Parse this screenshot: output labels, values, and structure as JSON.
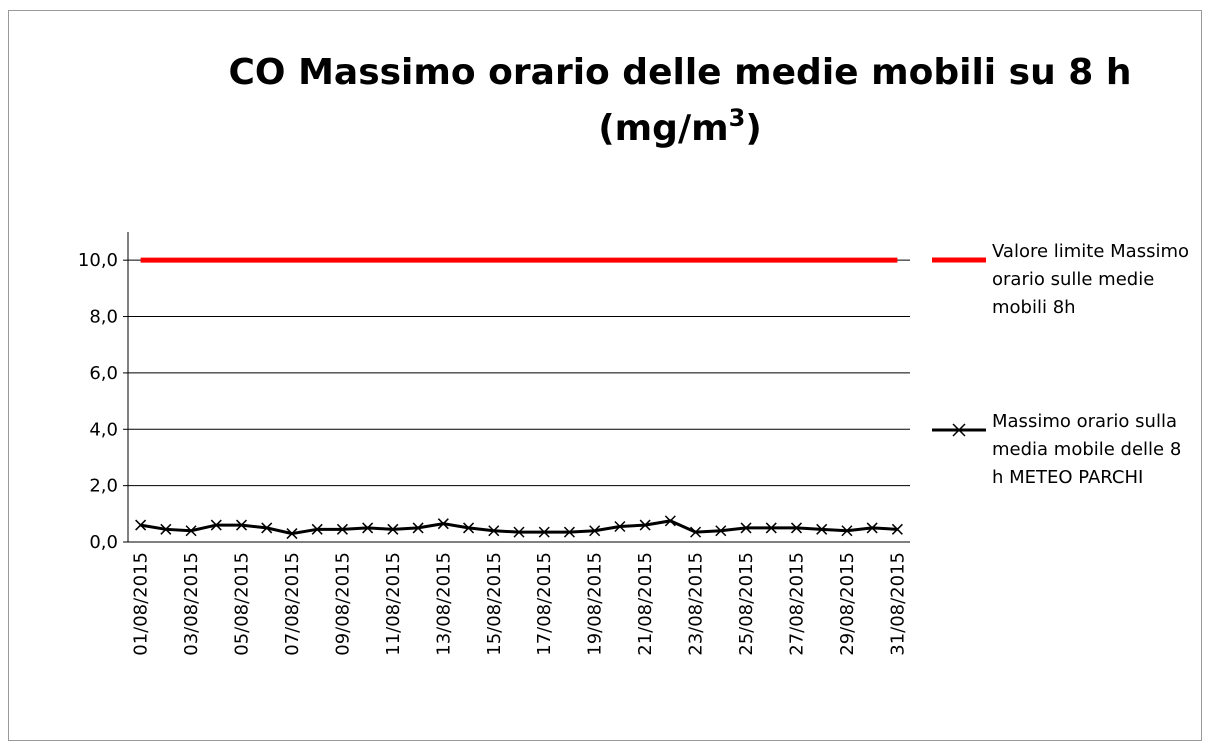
{
  "chart_data": {
    "type": "line",
    "title": "CO Massimo orario delle medie mobili  su 8 h",
    "title_unit": {
      "text": "(mg/m",
      "superscript": "3",
      "close": ")"
    },
    "categories": [
      "01/08/2015",
      null,
      "03/08/2015",
      null,
      "05/08/2015",
      null,
      "07/08/2015",
      null,
      "09/08/2015",
      null,
      "11/08/2015",
      null,
      "13/08/2015",
      null,
      "15/08/2015",
      null,
      "17/08/2015",
      null,
      "19/08/2015",
      null,
      "21/08/2015",
      null,
      "23/08/2015",
      null,
      "25/08/2015",
      null,
      "27/08/2015",
      null,
      "29/08/2015",
      null,
      "31/08/2015"
    ],
    "series": [
      {
        "name": "Valore limite Massimo orario sulle medie mobili 8h",
        "color": "#ff0000",
        "marker": false,
        "values": [
          10,
          10,
          10,
          10,
          10,
          10,
          10,
          10,
          10,
          10,
          10,
          10,
          10,
          10,
          10,
          10,
          10,
          10,
          10,
          10,
          10,
          10,
          10,
          10,
          10,
          10,
          10,
          10,
          10,
          10,
          10
        ]
      },
      {
        "name": "Massimo orario sulla media mobile delle 8 h METEO PARCHI",
        "color": "#000000",
        "marker": true,
        "values": [
          0.6,
          0.45,
          0.4,
          0.6,
          0.6,
          0.5,
          0.3,
          0.45,
          0.45,
          0.5,
          0.45,
          0.5,
          0.65,
          0.5,
          0.4,
          0.35,
          0.35,
          0.35,
          0.4,
          0.55,
          0.6,
          0.75,
          0.35,
          0.4,
          0.5,
          0.5,
          0.5,
          0.45,
          0.4,
          0.5,
          0.45
        ]
      }
    ],
    "ylim": [
      0,
      11
    ],
    "yticks": [
      {
        "value": 0,
        "label": "0,0"
      },
      {
        "value": 2,
        "label": "2,0"
      },
      {
        "value": 4,
        "label": "4,0"
      },
      {
        "value": 6,
        "label": "6,0"
      },
      {
        "value": 8,
        "label": "8,0"
      },
      {
        "value": 10,
        "label": "10,0"
      }
    ],
    "grid": true
  }
}
